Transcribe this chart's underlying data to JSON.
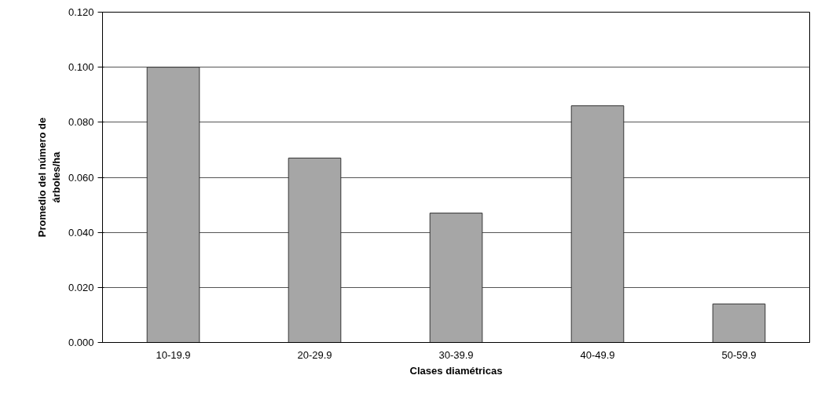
{
  "chart_data": {
    "type": "bar",
    "categories": [
      "10-19.9",
      "20-29.9",
      "30-39.9",
      "40-49.9",
      "50-59.9"
    ],
    "values": [
      0.1,
      0.067,
      0.047,
      0.086,
      0.014
    ],
    "color": "#a6a6a6",
    "xlabel": "Clases diamétricas",
    "ylabel": "Promedio del número de árboles/ha",
    "ylim": [
      0,
      0.12
    ],
    "yticks": [
      {
        "value": 0,
        "label": "0.000"
      },
      {
        "value": 0.02,
        "label": "0.020"
      },
      {
        "value": 0.04,
        "label": "0.040"
      },
      {
        "value": 0.06,
        "label": "0.060"
      },
      {
        "value": 0.08,
        "label": "0.080"
      },
      {
        "value": 0.1,
        "label": "0.100"
      },
      {
        "value": 0.12,
        "label": "0.120"
      }
    ],
    "grid": "y"
  }
}
